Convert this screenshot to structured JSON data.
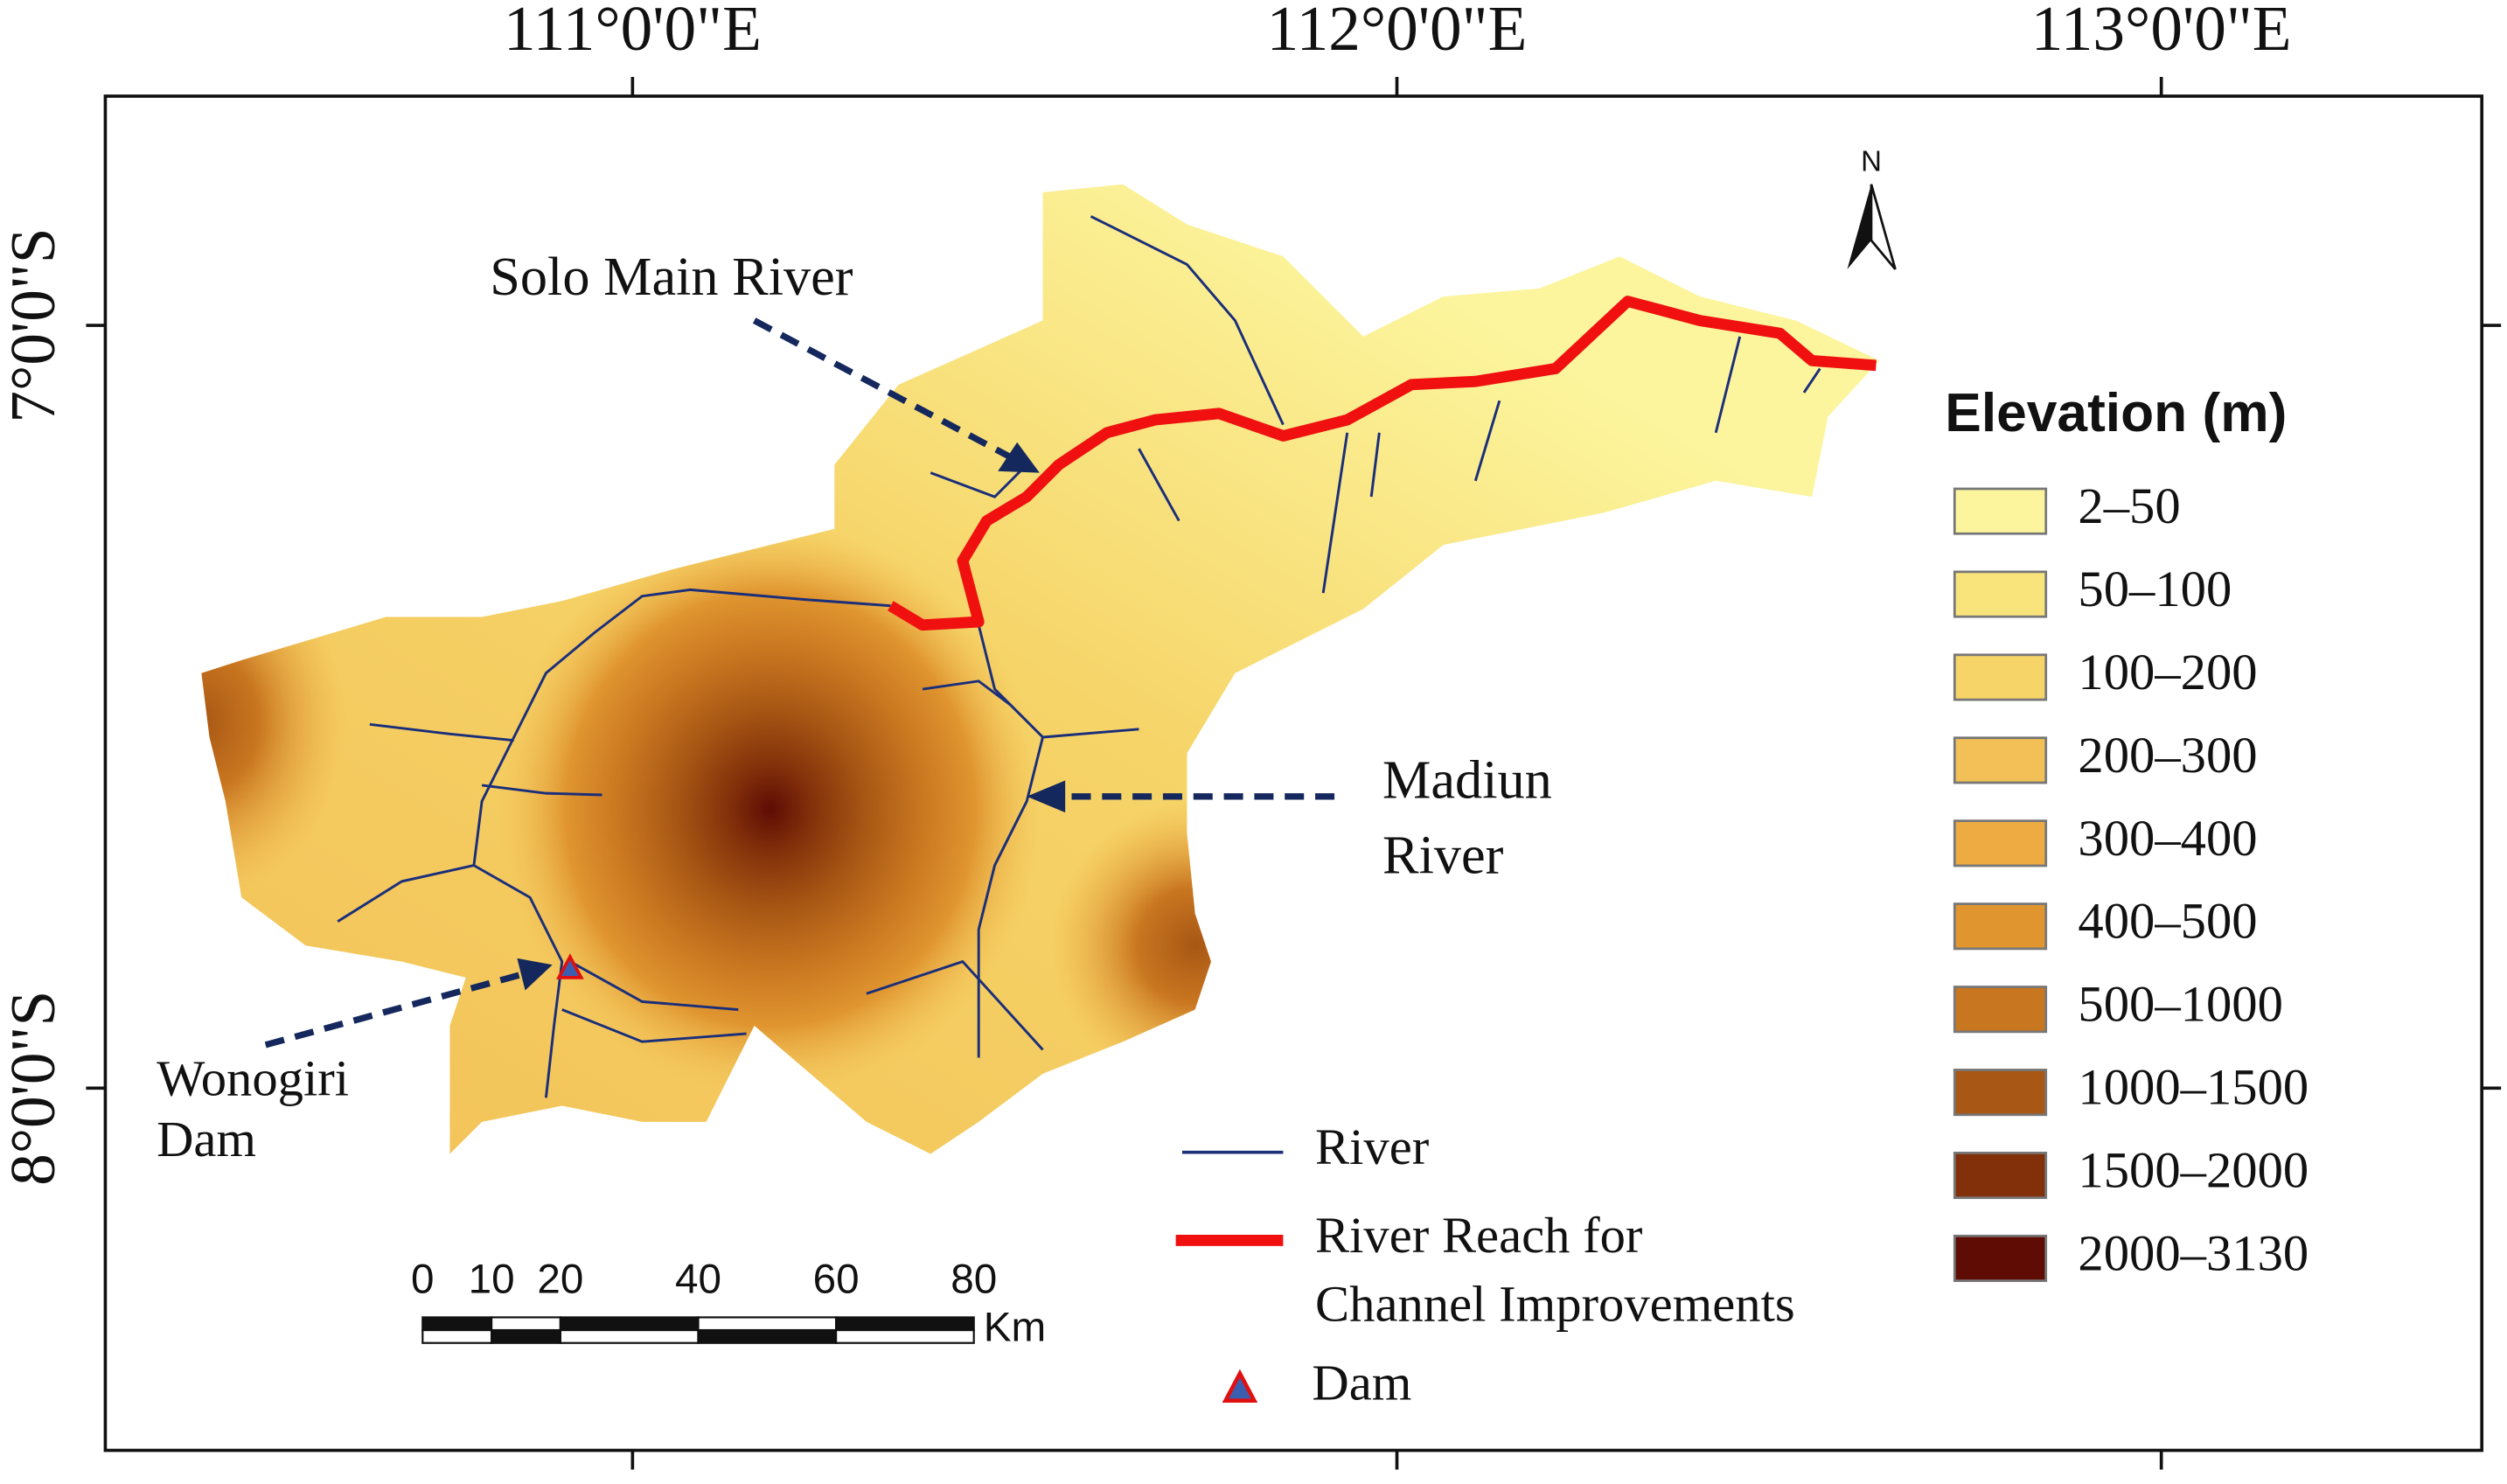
{
  "map": {
    "longitude_labels": [
      "111°0'0\"E",
      "112°0'0\"E",
      "113°0'0\"E"
    ],
    "latitude_labels": [
      "7°0'0\"S",
      "8°0'0\"S"
    ],
    "annotations": {
      "solo": "Solo Main River",
      "madiun": [
        "Madiun",
        "River"
      ],
      "wonogiri": [
        "Wonogiri",
        "Dam"
      ]
    },
    "north": "N",
    "elevation_legend": {
      "title": "Elevation (m)",
      "items": [
        {
          "label": "2–50",
          "color": "#fcf59d"
        },
        {
          "label": "50–100",
          "color": "#f9e47c"
        },
        {
          "label": "100–200",
          "color": "#f6d468"
        },
        {
          "label": "200–300",
          "color": "#f2c056"
        },
        {
          "label": "300–400",
          "color": "#eeab42"
        },
        {
          "label": "400–500",
          "color": "#e0952f"
        },
        {
          "label": "500–1000",
          "color": "#c97620"
        },
        {
          "label": "1000–1500",
          "color": "#a85714"
        },
        {
          "label": "1500–2000",
          "color": "#82300a"
        },
        {
          "label": "2000–3130",
          "color": "#5e0c04"
        }
      ]
    },
    "symbol_legend": {
      "river": "River",
      "reach": [
        "River Reach for",
        "Channel Improvements"
      ],
      "dam": "Dam"
    },
    "scale_bar": {
      "ticks": [
        0,
        10,
        20,
        40,
        60,
        80
      ],
      "unit": "Km"
    }
  }
}
